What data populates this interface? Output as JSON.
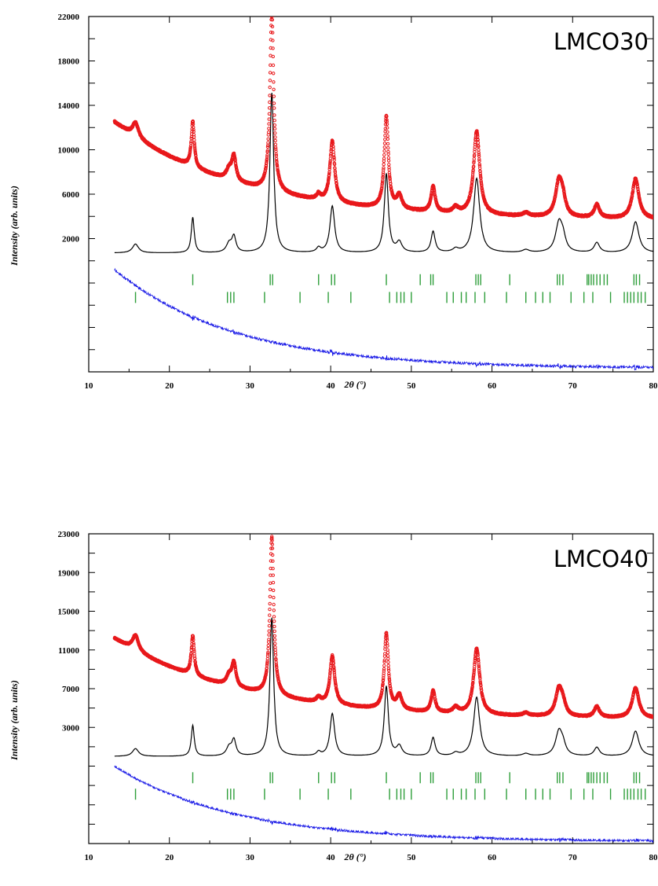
{
  "chart_data": [
    {
      "type": "scatter",
      "title": "LMCO30",
      "xlabel": "2θ (°)",
      "ylabel": "Intensity (arb. units)",
      "xlim": [
        10,
        80
      ],
      "ylim": [
        -10000,
        22000
      ],
      "x_ticks": [
        10,
        20,
        30,
        40,
        50,
        60,
        70,
        80
      ],
      "y_tick_labels": [
        22000,
        18000,
        14000,
        10000,
        6000,
        2000
      ],
      "background": {
        "start": 12600,
        "end": 3600
      },
      "peaks": [
        {
          "pos": 15.8,
          "obs": 1300,
          "calc": 800,
          "w": 0.45
        },
        {
          "pos": 22.9,
          "obs": 4100,
          "calc": 3200,
          "w": 0.22
        },
        {
          "pos": 27.4,
          "obs": 900,
          "calc": 800,
          "w": 0.4
        },
        {
          "pos": 28.0,
          "obs": 2200,
          "calc": 1400,
          "w": 0.3
        },
        {
          "pos": 32.7,
          "obs": 16100,
          "calc": 14400,
          "w": 0.28
        },
        {
          "pos": 38.5,
          "obs": 500,
          "calc": 400,
          "w": 0.3
        },
        {
          "pos": 40.2,
          "obs": 5500,
          "calc": 4200,
          "w": 0.35
        },
        {
          "pos": 46.9,
          "obs": 8300,
          "calc": 7100,
          "w": 0.3
        },
        {
          "pos": 48.5,
          "obs": 1200,
          "calc": 900,
          "w": 0.4
        },
        {
          "pos": 52.7,
          "obs": 2300,
          "calc": 1900,
          "w": 0.3
        },
        {
          "pos": 55.5,
          "obs": 500,
          "calc": 300,
          "w": 0.4
        },
        {
          "pos": 58.1,
          "obs": 7500,
          "calc": 6700,
          "w": 0.45
        },
        {
          "pos": 64.2,
          "obs": 300,
          "calc": 250,
          "w": 0.5
        },
        {
          "pos": 68.3,
          "obs": 3200,
          "calc": 2600,
          "w": 0.5
        },
        {
          "pos": 68.8,
          "obs": 1200,
          "calc": 1100,
          "w": 0.4
        },
        {
          "pos": 73.0,
          "obs": 1200,
          "calc": 900,
          "w": 0.4
        },
        {
          "pos": 77.8,
          "obs": 3600,
          "calc": 2800,
          "w": 0.5
        }
      ],
      "calc_offset": 700,
      "bragg_row1": [
        22.9,
        32.5,
        32.8,
        38.5,
        40.1,
        40.5,
        46.9,
        51.1,
        52.4,
        52.7,
        58.0,
        58.3,
        58.6,
        62.2,
        68.1,
        68.4,
        68.8,
        71.8,
        72.0,
        72.3,
        72.6,
        73.0,
        73.4,
        73.9,
        74.3,
        77.6,
        77.9,
        78.3
      ],
      "bragg_row2": [
        15.8,
        27.2,
        27.6,
        28.0,
        31.8,
        36.2,
        39.7,
        42.5,
        47.3,
        48.2,
        48.7,
        49.1,
        50.0,
        54.4,
        55.2,
        56.2,
        56.8,
        57.9,
        59.1,
        61.8,
        64.2,
        65.4,
        66.3,
        67.2,
        69.8,
        71.4,
        72.5,
        74.7,
        76.4,
        76.8,
        77.2,
        77.6,
        78.1,
        78.5,
        79.0
      ],
      "bragg_row1_y": -1700,
      "bragg_row2_y": -3300,
      "diff_start": -800,
      "diff_end": -9700
    },
    {
      "type": "scatter",
      "title": "LMCO40",
      "xlabel": "2θ (°)",
      "ylabel": "Intensity (arb. units)",
      "xlim": [
        10,
        80
      ],
      "ylim": [
        -9000,
        23000
      ],
      "x_ticks": [
        10,
        20,
        30,
        40,
        50,
        60,
        70,
        80
      ],
      "y_tick_labels": [
        23000,
        19000,
        15000,
        11000,
        7000,
        3000
      ],
      "background": {
        "start": 12300,
        "end": 3800
      },
      "peaks": [
        {
          "pos": 15.8,
          "obs": 1600,
          "calc": 800,
          "w": 0.45
        },
        {
          "pos": 22.9,
          "obs": 4100,
          "calc": 3200,
          "w": 0.22
        },
        {
          "pos": 27.4,
          "obs": 1000,
          "calc": 900,
          "w": 0.4
        },
        {
          "pos": 28.0,
          "obs": 2400,
          "calc": 1600,
          "w": 0.3
        },
        {
          "pos": 32.7,
          "obs": 16400,
          "calc": 14300,
          "w": 0.28
        },
        {
          "pos": 38.5,
          "obs": 500,
          "calc": 400,
          "w": 0.3
        },
        {
          "pos": 40.2,
          "obs": 5000,
          "calc": 4400,
          "w": 0.35
        },
        {
          "pos": 46.9,
          "obs": 7800,
          "calc": 7200,
          "w": 0.3
        },
        {
          "pos": 48.5,
          "obs": 1500,
          "calc": 1000,
          "w": 0.4
        },
        {
          "pos": 52.7,
          "obs": 2200,
          "calc": 1900,
          "w": 0.3
        },
        {
          "pos": 55.5,
          "obs": 600,
          "calc": 300,
          "w": 0.4
        },
        {
          "pos": 58.1,
          "obs": 6800,
          "calc": 6100,
          "w": 0.45
        },
        {
          "pos": 64.2,
          "obs": 300,
          "calc": 250,
          "w": 0.5
        },
        {
          "pos": 68.3,
          "obs": 2800,
          "calc": 2500,
          "w": 0.5
        },
        {
          "pos": 68.8,
          "obs": 1000,
          "calc": 900,
          "w": 0.4
        },
        {
          "pos": 73.0,
          "obs": 1100,
          "calc": 900,
          "w": 0.4
        },
        {
          "pos": 77.8,
          "obs": 3100,
          "calc": 2600,
          "w": 0.5
        }
      ],
      "calc_offset": 0,
      "bragg_row1": [
        22.9,
        32.5,
        32.8,
        38.5,
        40.1,
        40.5,
        46.9,
        51.1,
        52.4,
        52.7,
        58.0,
        58.3,
        58.6,
        62.2,
        68.1,
        68.4,
        68.8,
        71.8,
        72.0,
        72.3,
        72.6,
        73.0,
        73.4,
        73.9,
        74.3,
        77.6,
        77.9,
        78.3
      ],
      "bragg_row2": [
        15.8,
        27.2,
        27.6,
        28.0,
        31.8,
        36.2,
        39.7,
        42.5,
        47.3,
        48.2,
        48.7,
        49.1,
        50.0,
        54.4,
        55.2,
        56.2,
        56.8,
        57.9,
        59.1,
        61.8,
        64.2,
        65.4,
        66.3,
        67.2,
        69.8,
        71.4,
        72.5,
        74.7,
        76.4,
        76.8,
        77.2,
        77.6,
        78.1,
        78.5,
        79.0
      ],
      "bragg_row1_y": -2200,
      "bragg_row2_y": -3900,
      "diff_start": -1000,
      "diff_end": -8800
    }
  ],
  "colors": {
    "observed": "#e8191c",
    "calculated": "#000000",
    "difference": "#1515e6",
    "bragg": "#2e9e3a"
  }
}
